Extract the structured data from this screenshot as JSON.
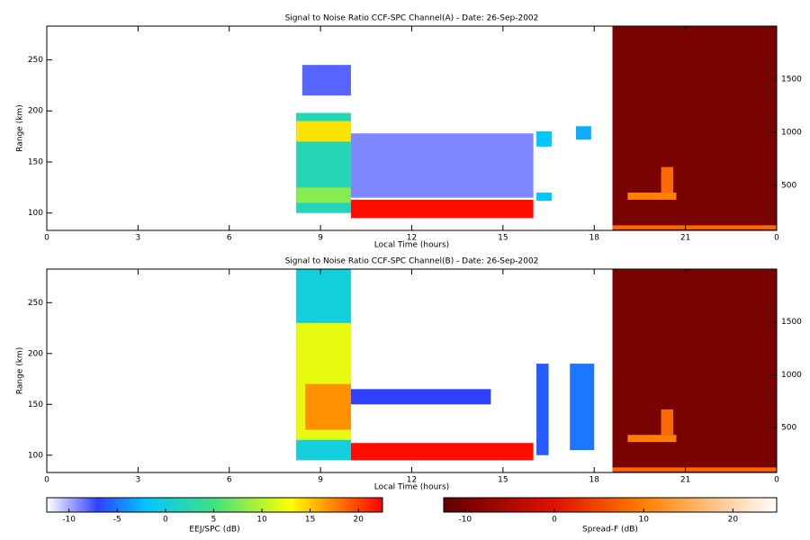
{
  "chart_data": [
    {
      "type": "heatmap",
      "title": "Signal to Noise Ratio CCF-SPC Channel(A) - Date: 26-Sep-2002",
      "xlabel": "Local Time (hours)",
      "ylabel": "Range (km)",
      "xlim": [
        0,
        24
      ],
      "xticks": [
        0,
        3,
        6,
        9,
        12,
        15,
        18,
        21,
        {
          "value": 24,
          "label": "0"
        }
      ],
      "ylim": [
        83,
        283
      ],
      "yticks": [
        100,
        150,
        200,
        250
      ],
      "y2lim": [
        76,
        2000
      ],
      "y2ticks": [
        500,
        1000,
        1500
      ],
      "regions": [
        {
          "scale": "spreadf",
          "time": [
            18.6,
            24
          ],
          "range": [
            83,
            283
          ],
          "snr": -10
        },
        {
          "scale": "spreadf",
          "time": [
            18.6,
            24
          ],
          "range": [
            84,
            88
          ],
          "snr": 8
        },
        {
          "scale": "spreadf",
          "time": [
            19.1,
            20.7
          ],
          "range": [
            113,
            120
          ],
          "snr": 10
        },
        {
          "scale": "spreadf",
          "time": [
            20.2,
            20.6
          ],
          "range": [
            120,
            145
          ],
          "snr": 8
        },
        {
          "scale": "eej",
          "time": [
            8.2,
            10
          ],
          "range": [
            100,
            198
          ],
          "snr": 2
        },
        {
          "scale": "eej",
          "time": [
            8.2,
            10
          ],
          "range": [
            170,
            190
          ],
          "snr": 14
        },
        {
          "scale": "eej",
          "time": [
            8.2,
            10
          ],
          "range": [
            110,
            125
          ],
          "snr": 8
        },
        {
          "scale": "eej",
          "time": [
            8.4,
            10
          ],
          "range": [
            215,
            245
          ],
          "snr": -8
        },
        {
          "scale": "eej",
          "time": [
            10,
            16
          ],
          "range": [
            115,
            178
          ],
          "snr": -9
        },
        {
          "scale": "eej",
          "time": [
            10,
            16
          ],
          "range": [
            95,
            113
          ],
          "snr": 22
        },
        {
          "scale": "eej",
          "time": [
            16.1,
            16.6
          ],
          "range": [
            165,
            180
          ],
          "snr": -2
        },
        {
          "scale": "eej",
          "time": [
            16.1,
            16.6
          ],
          "range": [
            112,
            120
          ],
          "snr": -2
        },
        {
          "scale": "eej",
          "time": [
            17.4,
            17.9
          ],
          "range": [
            172,
            185
          ],
          "snr": -3
        }
      ]
    },
    {
      "type": "heatmap",
      "title": "Signal to Noise Ratio CCF-SPC Channel(B) - Date: 26-Sep-2002",
      "xlabel": "Local Time (hours)",
      "ylabel": "Range (km)",
      "xlim": [
        0,
        24
      ],
      "xticks": [
        0,
        3,
        6,
        9,
        12,
        15,
        18,
        21,
        {
          "value": 24,
          "label": "0"
        }
      ],
      "ylim": [
        83,
        283
      ],
      "yticks": [
        100,
        150,
        200,
        250
      ],
      "y2lim": [
        76,
        2000
      ],
      "y2ticks": [
        500,
        1000,
        1500
      ],
      "regions": [
        {
          "scale": "spreadf",
          "time": [
            18.6,
            24
          ],
          "range": [
            83,
            283
          ],
          "snr": -10
        },
        {
          "scale": "spreadf",
          "time": [
            18.6,
            24
          ],
          "range": [
            84,
            88
          ],
          "snr": 8
        },
        {
          "scale": "spreadf",
          "time": [
            19.1,
            20.7
          ],
          "range": [
            113,
            120
          ],
          "snr": 10
        },
        {
          "scale": "spreadf",
          "time": [
            20.2,
            20.6
          ],
          "range": [
            120,
            145
          ],
          "snr": 8
        },
        {
          "scale": "eej",
          "time": [
            8.2,
            10
          ],
          "range": [
            95,
            283
          ],
          "snr": 0
        },
        {
          "scale": "eej",
          "time": [
            8.2,
            10
          ],
          "range": [
            115,
            230
          ],
          "snr": 12
        },
        {
          "scale": "eej",
          "time": [
            8.5,
            10
          ],
          "range": [
            125,
            170
          ],
          "snr": 17
        },
        {
          "scale": "eej",
          "time": [
            10,
            16
          ],
          "range": [
            95,
            112
          ],
          "snr": 22
        },
        {
          "scale": "eej",
          "time": [
            10,
            14.6
          ],
          "range": [
            150,
            165
          ],
          "snr": -7
        },
        {
          "scale": "eej",
          "time": [
            16.1,
            16.5
          ],
          "range": [
            100,
            190
          ],
          "snr": -6
        },
        {
          "scale": "eej",
          "time": [
            17.2,
            18
          ],
          "range": [
            105,
            190
          ],
          "snr": -5
        }
      ]
    }
  ],
  "colorbars": [
    {
      "key": "eej",
      "label": "EEJ/SPC (dB)",
      "lim": [
        -12.3,
        22.5
      ],
      "ticks": [
        -10,
        -5,
        0,
        5,
        10,
        15,
        20
      ],
      "colormap": [
        {
          "value": -12.3,
          "color": "#ffffff"
        },
        {
          "value": -7,
          "color": "#3040ff"
        },
        {
          "value": -2,
          "color": "#00c8ff"
        },
        {
          "value": 5,
          "color": "#40e080"
        },
        {
          "value": 13,
          "color": "#ffff00"
        },
        {
          "value": 17,
          "color": "#ff9000"
        },
        {
          "value": 22.5,
          "color": "#ff0000"
        }
      ]
    },
    {
      "key": "spreadf",
      "label": "Spread-F (dB)",
      "lim": [
        -12.4,
        24.9
      ],
      "ticks": [
        -10,
        0,
        10,
        20
      ],
      "colormap": [
        {
          "value": -12.4,
          "color": "#600000"
        },
        {
          "value": 0,
          "color": "#e01000"
        },
        {
          "value": 10,
          "color": "#ff8000"
        },
        {
          "value": 24.9,
          "color": "#ffffff"
        }
      ]
    }
  ]
}
